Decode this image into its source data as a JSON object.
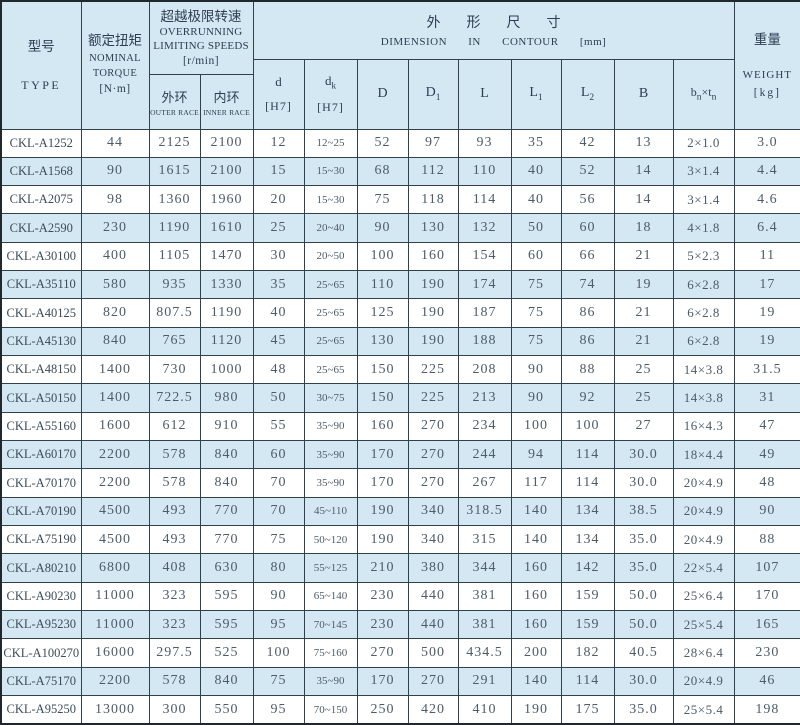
{
  "colors": {
    "stripe_blue": "#d4e8f4",
    "border": "#31404a",
    "text": "#4d5c68"
  },
  "header": {
    "type": {
      "cn": "型号",
      "en": "TYPE"
    },
    "torque": {
      "cn": "额定扭矩",
      "en1": "NOMINAL",
      "en2": "TORQUE",
      "unit": "[N·m]"
    },
    "speeds": {
      "cn": "超越极限转速",
      "en1": "OVERRUNNING",
      "en2": "LIMITING SPEEDS",
      "unit": "[r/min]",
      "outer_cn": "外环",
      "outer_en": "OUTER RACE",
      "inner_cn": "内环",
      "inner_en": "INNER RACE"
    },
    "dimension": {
      "cn": "外形尺寸",
      "en": "DIMENSION IN CONTOUR",
      "unit": "[mm]"
    },
    "weight": {
      "cn": "重量",
      "en": "WEIGHT",
      "unit": "[kg]"
    },
    "dim_cols": {
      "d": {
        "main": "d",
        "sub": "",
        "unit": "[H7]"
      },
      "dk": {
        "main": "d",
        "sub": "k",
        "unit": "[H7]"
      },
      "D": {
        "main": "D",
        "sub": ""
      },
      "D1": {
        "main": "D",
        "sub": "1"
      },
      "L": {
        "main": "L",
        "sub": ""
      },
      "L1": {
        "main": "L",
        "sub": "1"
      },
      "L2": {
        "main": "L",
        "sub": "2"
      },
      "B": {
        "main": "B",
        "sub": ""
      },
      "bntn": {
        "b": "b",
        "bsub": "n",
        "times": "×",
        "t": "t",
        "tsub": "n"
      }
    }
  },
  "col_keys": [
    "type",
    "torque",
    "outer",
    "inner",
    "d",
    "dk",
    "D",
    "D1",
    "L",
    "L1",
    "L2",
    "B",
    "bn_tn",
    "weight"
  ],
  "rows": [
    [
      "CKL-A1252",
      "44",
      "2125",
      "2100",
      "12",
      "12~25",
      "52",
      "97",
      "93",
      "35",
      "42",
      "13",
      "2×1.0",
      "3.0"
    ],
    [
      "CKL-A1568",
      "90",
      "1615",
      "2100",
      "15",
      "15~30",
      "68",
      "112",
      "110",
      "40",
      "52",
      "14",
      "3×1.4",
      "4.4"
    ],
    [
      "CKL-A2075",
      "98",
      "1360",
      "1960",
      "20",
      "15~30",
      "75",
      "118",
      "114",
      "40",
      "56",
      "14",
      "3×1.4",
      "4.6"
    ],
    [
      "CKL-A2590",
      "230",
      "1190",
      "1610",
      "25",
      "20~40",
      "90",
      "130",
      "132",
      "50",
      "60",
      "18",
      "4×1.8",
      "6.4"
    ],
    [
      "CKL-A30100",
      "400",
      "1105",
      "1470",
      "30",
      "20~50",
      "100",
      "160",
      "154",
      "60",
      "66",
      "21",
      "5×2.3",
      "11"
    ],
    [
      "CKL-A35110",
      "580",
      "935",
      "1330",
      "35",
      "25~65",
      "110",
      "190",
      "174",
      "75",
      "74",
      "19",
      "6×2.8",
      "17"
    ],
    [
      "CKL-A40125",
      "820",
      "807.5",
      "1190",
      "40",
      "25~65",
      "125",
      "190",
      "187",
      "75",
      "86",
      "21",
      "6×2.8",
      "19"
    ],
    [
      "CKL-A45130",
      "840",
      "765",
      "1120",
      "45",
      "25~65",
      "130",
      "190",
      "188",
      "75",
      "86",
      "21",
      "6×2.8",
      "19"
    ],
    [
      "CKL-A48150",
      "1400",
      "730",
      "1000",
      "48",
      "25~65",
      "150",
      "225",
      "208",
      "90",
      "88",
      "25",
      "14×3.8",
      "31.5"
    ],
    [
      "CKL-A50150",
      "1400",
      "722.5",
      "980",
      "50",
      "30~75",
      "150",
      "225",
      "213",
      "90",
      "92",
      "25",
      "14×3.8",
      "31"
    ],
    [
      "CKL-A55160",
      "1600",
      "612",
      "910",
      "55",
      "35~90",
      "160",
      "270",
      "234",
      "100",
      "100",
      "27",
      "16×4.3",
      "47"
    ],
    [
      "CKL-A60170",
      "2200",
      "578",
      "840",
      "60",
      "35~90",
      "170",
      "270",
      "244",
      "94",
      "114",
      "30.0",
      "18×4.4",
      "49"
    ],
    [
      "CKL-A70170",
      "2200",
      "578",
      "840",
      "70",
      "35~90",
      "170",
      "270",
      "267",
      "117",
      "114",
      "30.0",
      "20×4.9",
      "48"
    ],
    [
      "CKL-A70190",
      "4500",
      "493",
      "770",
      "70",
      "45~110",
      "190",
      "340",
      "318.5",
      "140",
      "134",
      "38.5",
      "20×4.9",
      "90"
    ],
    [
      "CKL-A75190",
      "4500",
      "493",
      "770",
      "75",
      "50~120",
      "190",
      "340",
      "315",
      "140",
      "134",
      "35.0",
      "20×4.9",
      "88"
    ],
    [
      "CKL-A80210",
      "6800",
      "408",
      "630",
      "80",
      "55~125",
      "210",
      "380",
      "344",
      "160",
      "142",
      "35.0",
      "22×5.4",
      "107"
    ],
    [
      "CKL-A90230",
      "11000",
      "323",
      "595",
      "90",
      "65~140",
      "230",
      "440",
      "381",
      "160",
      "159",
      "50.0",
      "25×6.4",
      "170"
    ],
    [
      "CKL-A95230",
      "11000",
      "323",
      "595",
      "95",
      "70~145",
      "230",
      "440",
      "381",
      "160",
      "159",
      "50.0",
      "25×5.4",
      "165"
    ],
    [
      "CKL-A100270",
      "16000",
      "297.5",
      "525",
      "100",
      "75~160",
      "270",
      "500",
      "434.5",
      "200",
      "182",
      "40.5",
      "28×6.4",
      "230"
    ],
    [
      "CKL-A75170",
      "2200",
      "578",
      "840",
      "75",
      "35~90",
      "170",
      "270",
      "291",
      "140",
      "114",
      "30.0",
      "20×4.9",
      "46"
    ],
    [
      "CKL-A95250",
      "13000",
      "300",
      "550",
      "95",
      "70~150",
      "250",
      "420",
      "410",
      "190",
      "175",
      "35.0",
      "25×5.4",
      "198"
    ]
  ]
}
